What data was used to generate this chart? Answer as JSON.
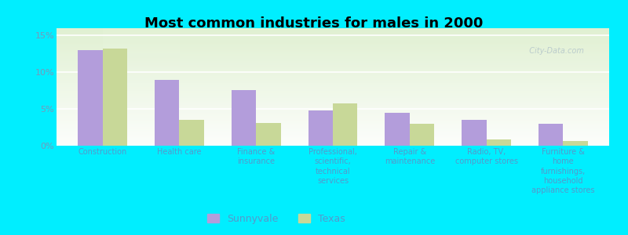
{
  "title": "Most common industries for males in 2000",
  "categories": [
    "Construction",
    "Health care",
    "Finance &\ninsurance",
    "Professional,\nscientific,\ntechnical\nservices",
    "Repair &\nmaintenance",
    "Radio, TV,\ncomputer stores",
    "Furniture &\nhome\nfurnishings,\nhousehold\nappliance stores"
  ],
  "sunnyvale": [
    13.0,
    9.0,
    7.6,
    4.8,
    4.5,
    3.5,
    3.0
  ],
  "texas": [
    13.2,
    3.5,
    3.1,
    5.8,
    3.0,
    0.9,
    0.6
  ],
  "sunnyvale_color": "#b39ddb",
  "texas_color": "#c8d898",
  "background_color": "#00eeff",
  "ylabel_ticks": [
    "0%",
    "5%",
    "10%",
    "15%"
  ],
  "ytick_vals": [
    0,
    5,
    10,
    15
  ],
  "ylim": [
    0,
    16
  ],
  "bar_width": 0.32,
  "legend_labels": [
    "Sunnyvale",
    "Texas"
  ],
  "title_fontsize": 13,
  "tick_fontsize": 7,
  "legend_fontsize": 9,
  "xtick_color": "#5599cc",
  "ytick_color": "#7799bb",
  "watermark": "  City-Data.com",
  "watermark_color": "#bbcccc"
}
